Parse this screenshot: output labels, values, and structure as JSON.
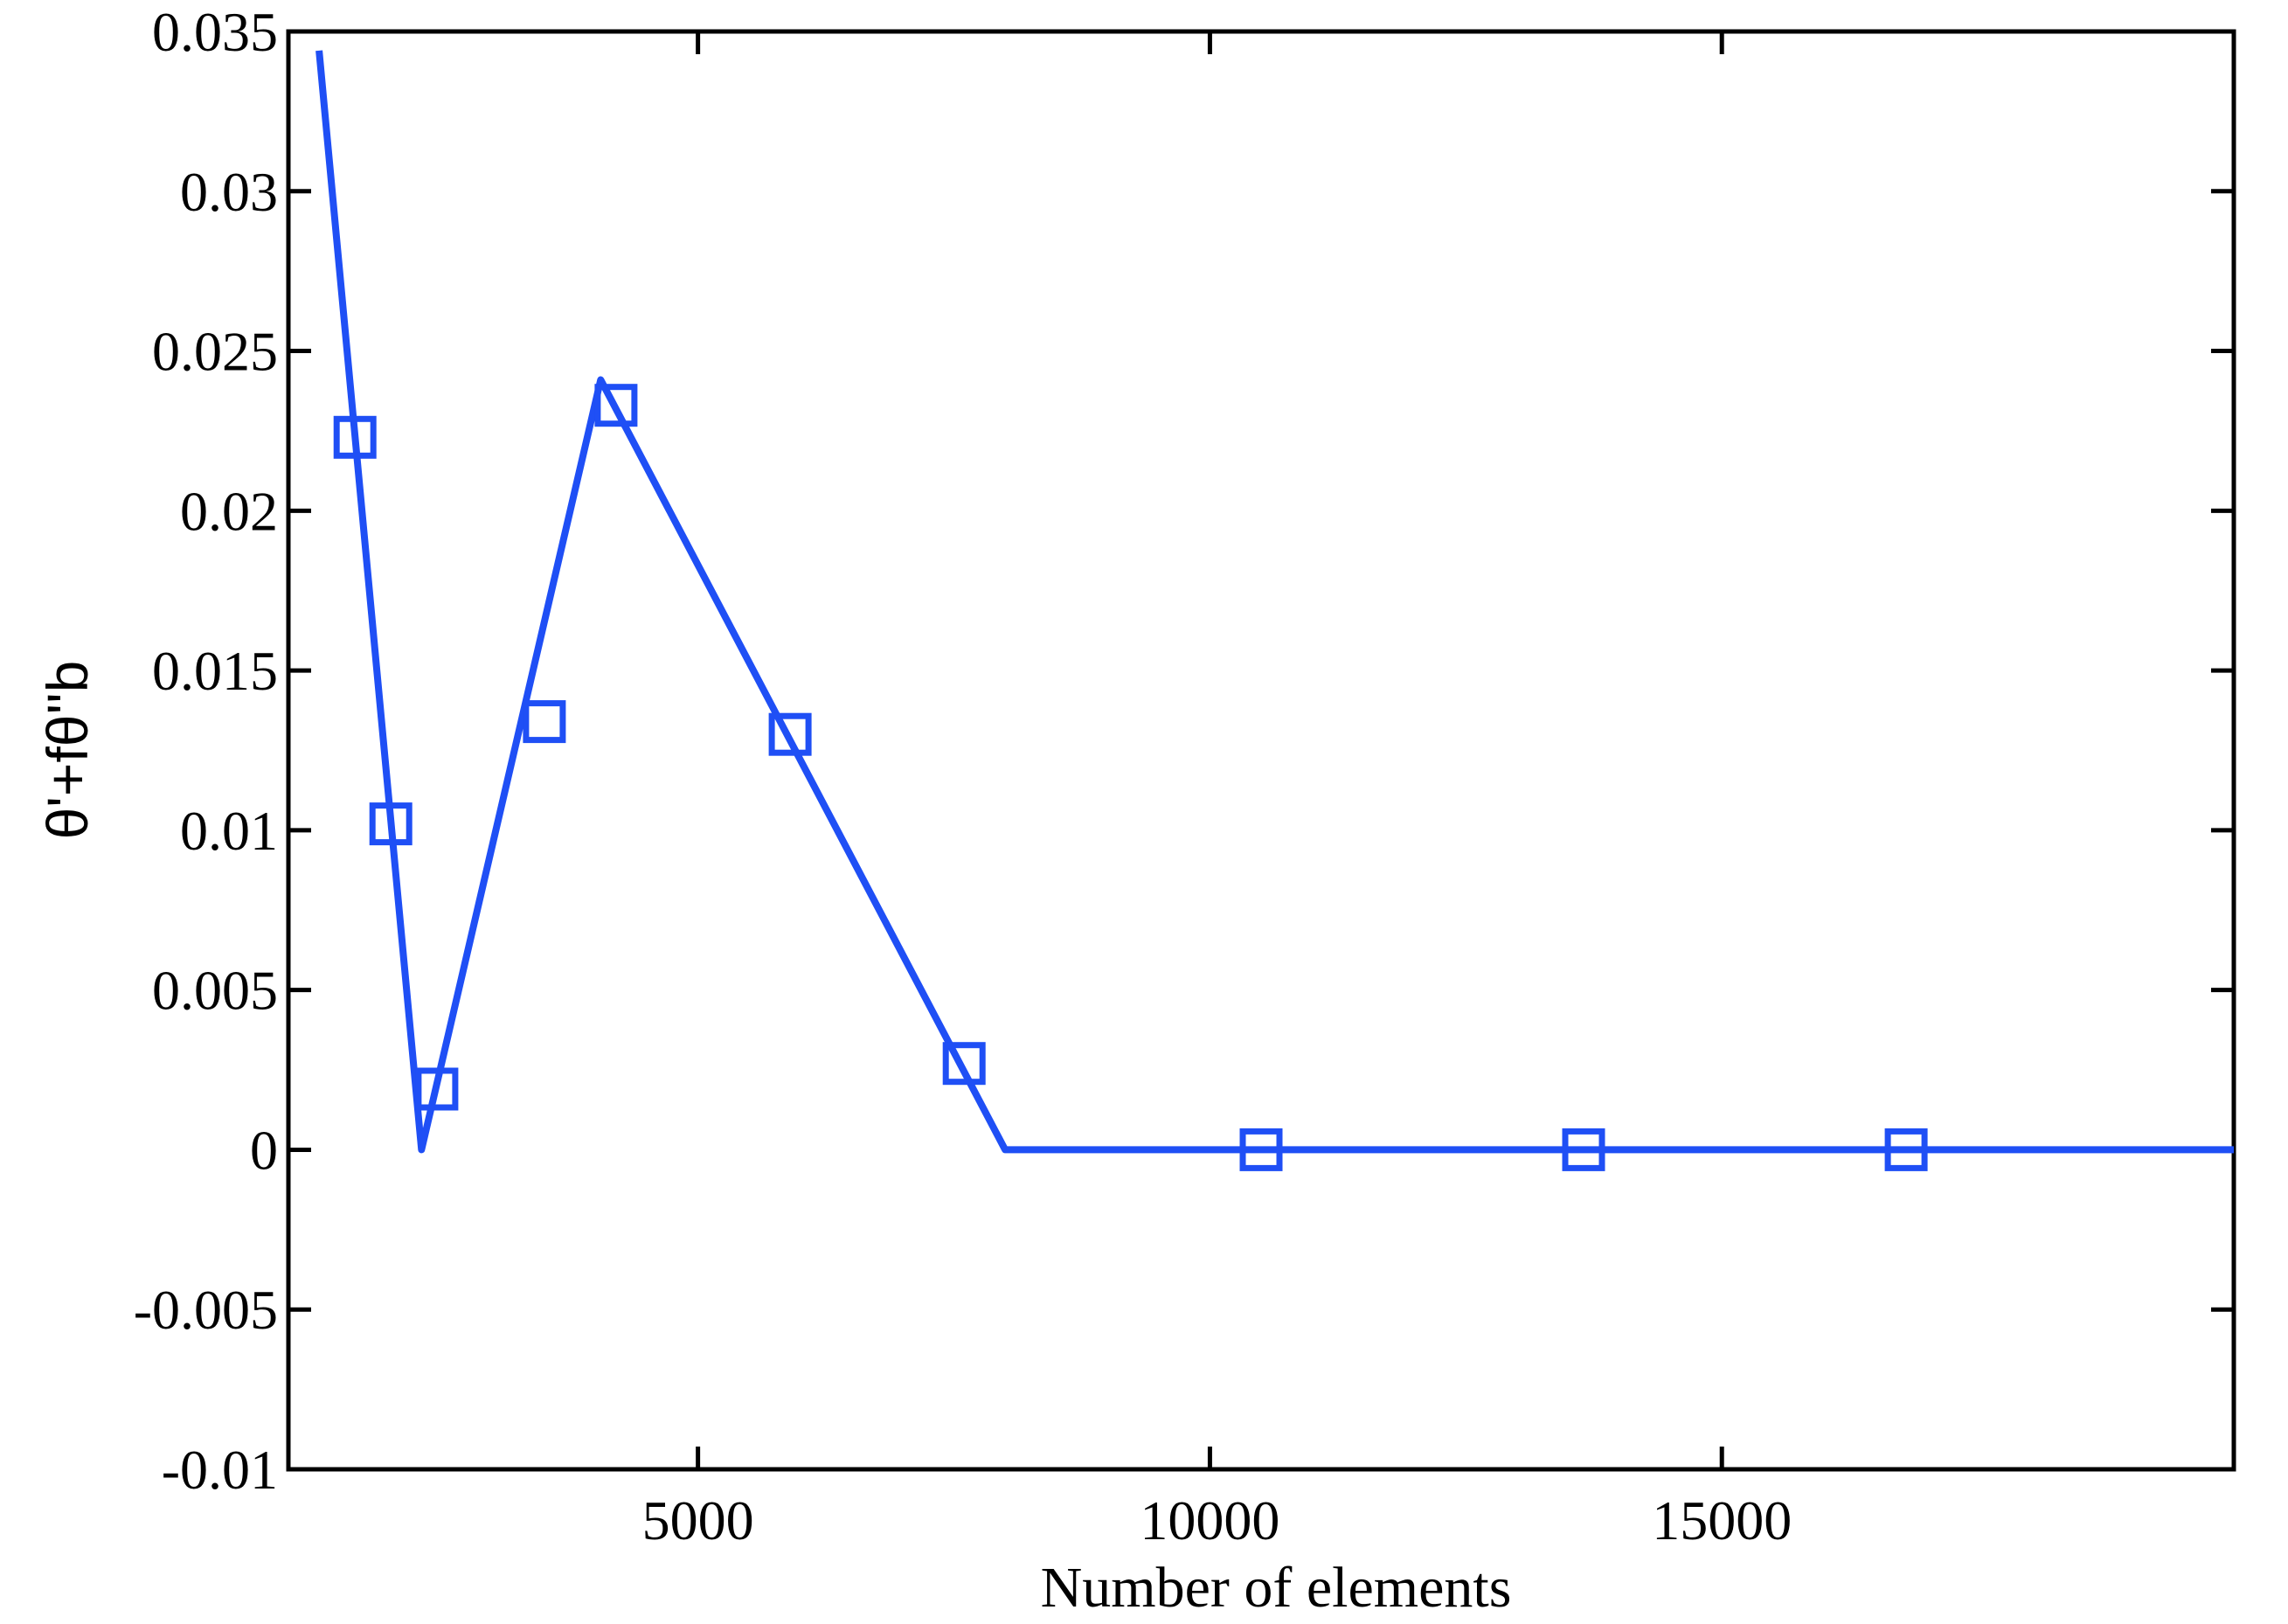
{
  "chart_data": {
    "type": "line",
    "title": "",
    "xlabel": "Number of elements",
    "ylabel": "θ'+fθ''b",
    "xlim": [
      1000,
      20000
    ],
    "ylim": [
      -0.01,
      0.035
    ],
    "xticks": [
      5000,
      10000,
      15000
    ],
    "xtick_labels": [
      "5000",
      "10000",
      "15000"
    ],
    "yticks": [
      -0.01,
      -0.005,
      0,
      0.005,
      0.01,
      0.015,
      0.02,
      0.025,
      0.03,
      0.035
    ],
    "ytick_labels": [
      "-0.01",
      "-0.005",
      "0",
      "0.005",
      "0.01",
      "0.015",
      "0.02",
      "0.025",
      "0.03",
      "0.035"
    ],
    "grid": false,
    "line_color": "#1f4ff5",
    "series": [
      {
        "line": {
          "x": [
            1300,
            2300,
            4050,
            8000,
            20000
          ],
          "y": [
            0.0344,
            0.0,
            0.0241,
            0.0,
            0.0
          ]
        },
        "markers": {
          "shape": "square",
          "x": [
            1650,
            2000,
            2450,
            3500,
            4200,
            5900,
            7600,
            10500,
            13650,
            16800
          ],
          "y": [
            0.0223,
            0.0102,
            0.0019,
            0.0134,
            0.0233,
            0.013,
            0.0027,
            0.0,
            0.0,
            0.0
          ]
        }
      }
    ]
  }
}
